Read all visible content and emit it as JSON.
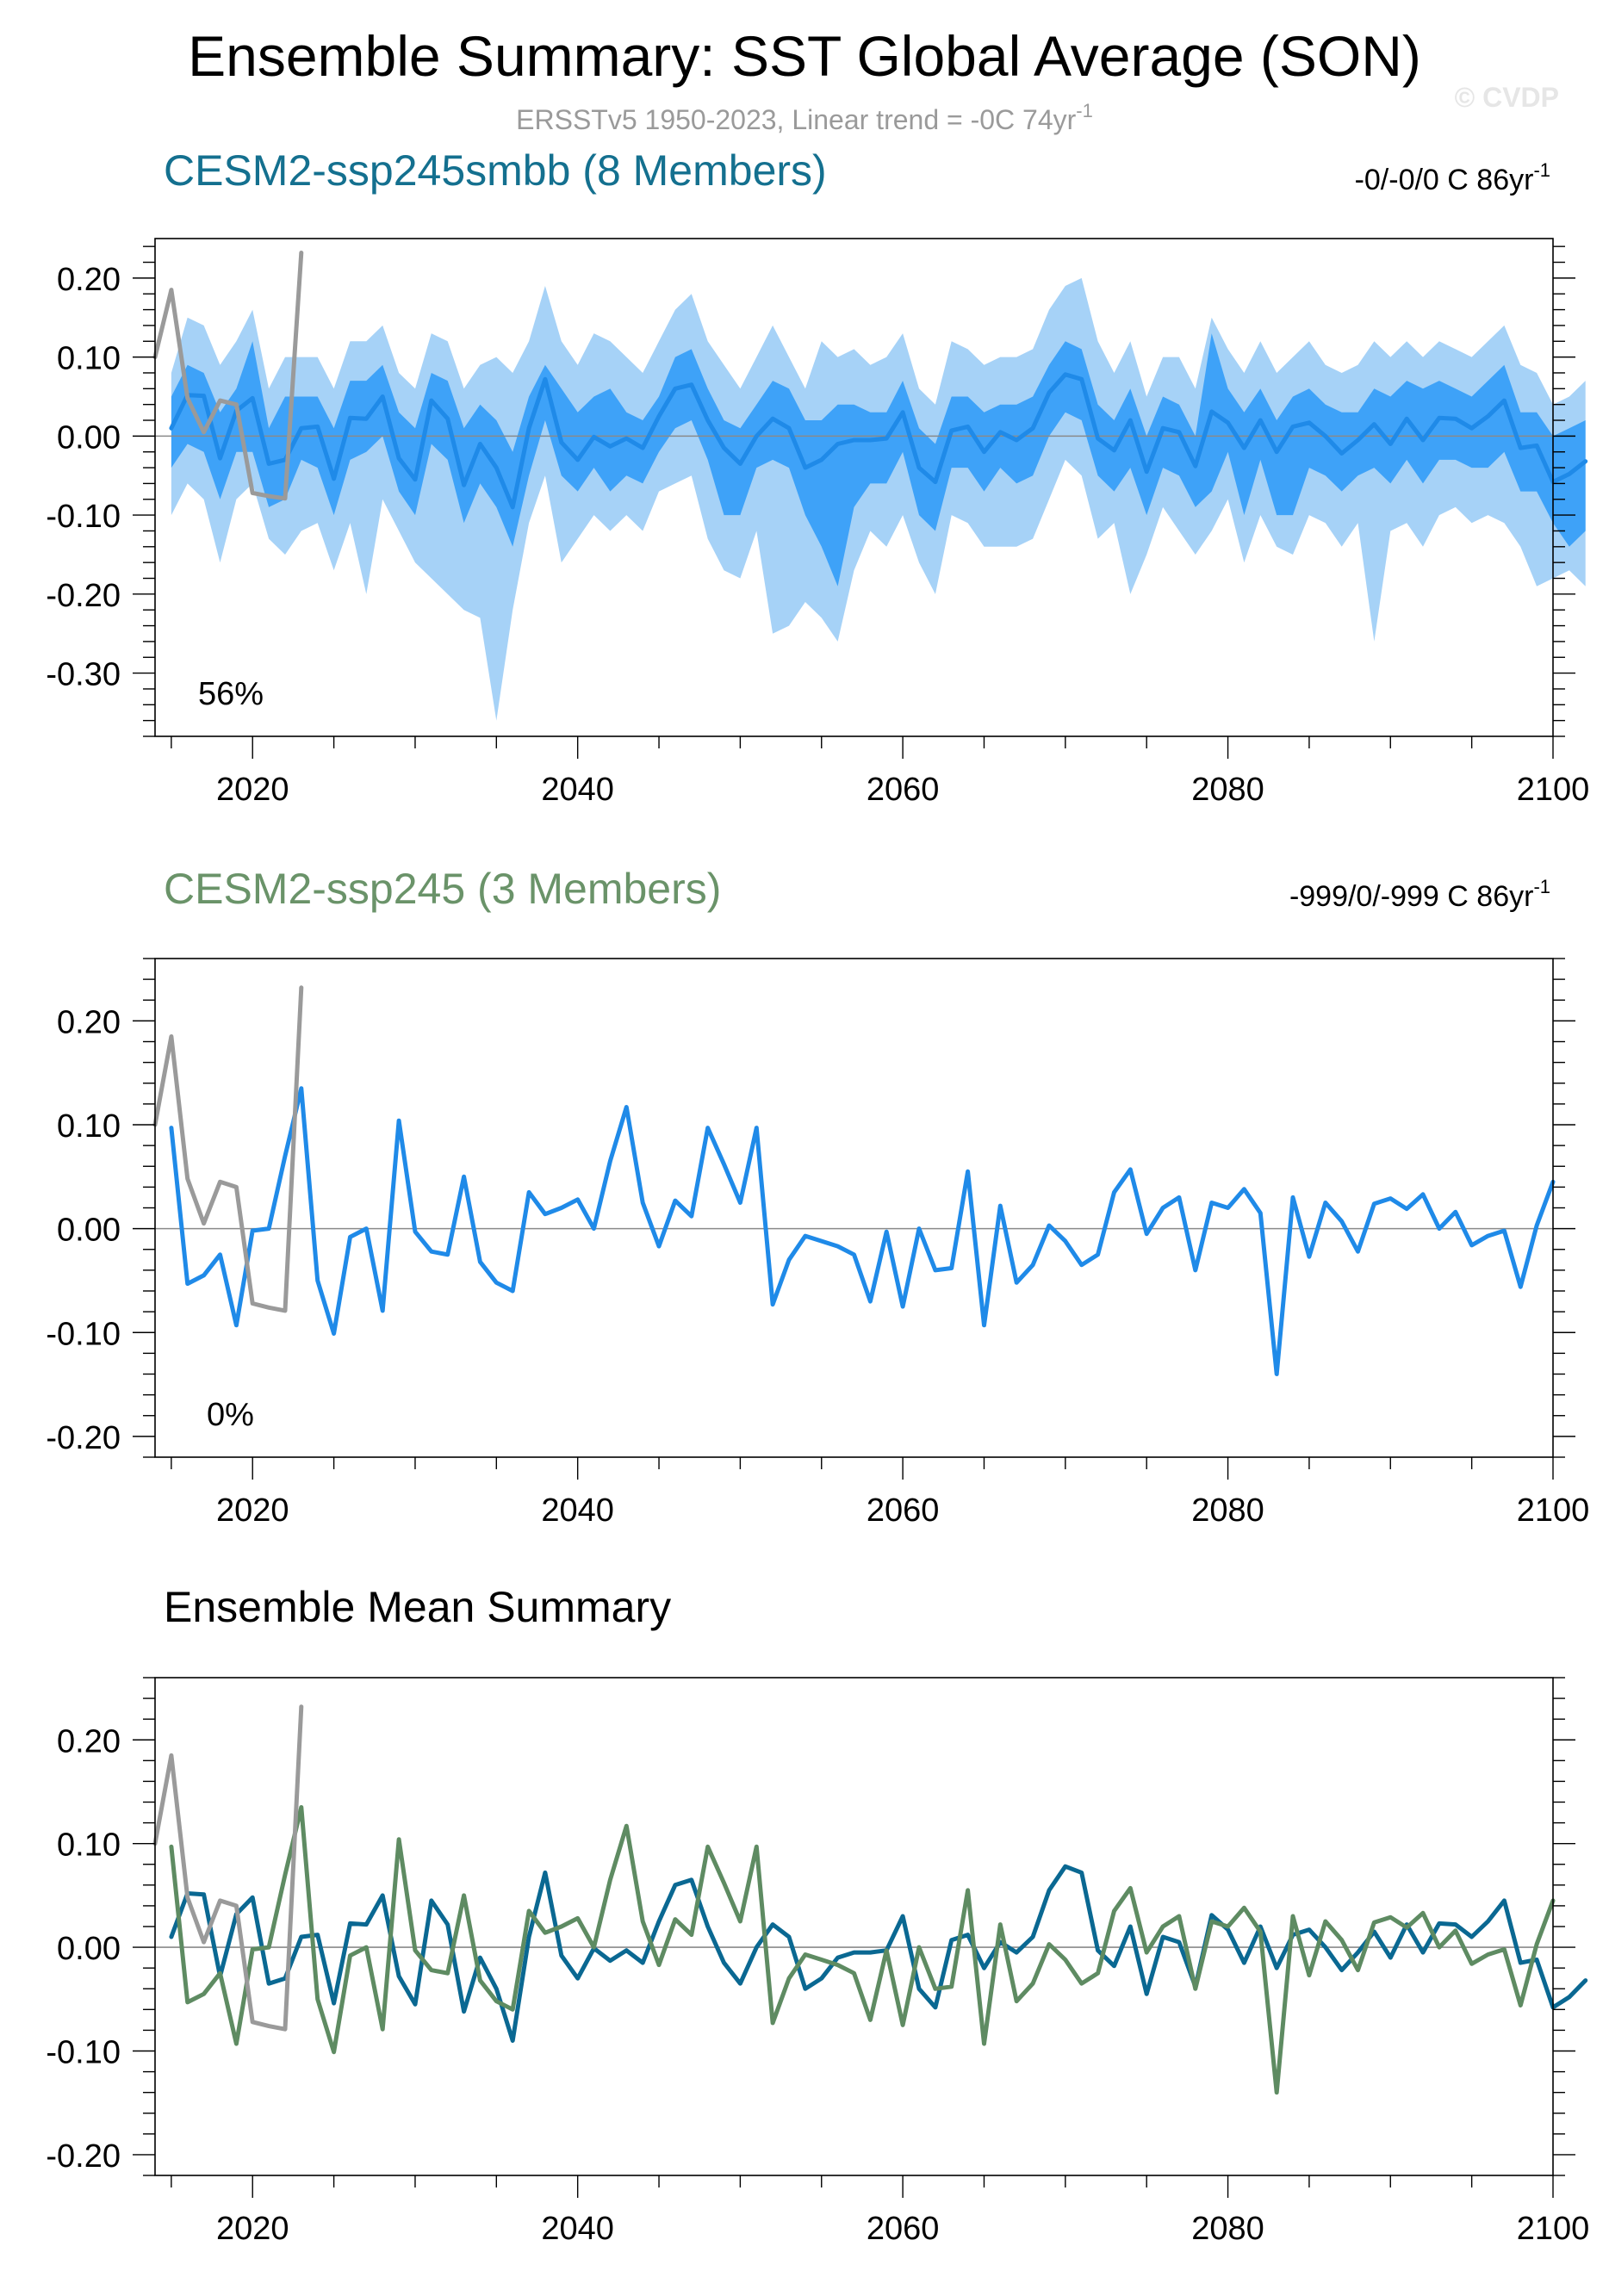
{
  "title": "Ensemble Summary: SST Global Average (SON)",
  "subtitle_main": "ERSSTv5 1950-2023, Linear trend = -0C 74yr",
  "subtitle_sup": "-1",
  "watermark": "© CVDP",
  "colors": {
    "band_outer": "#a6d2f7",
    "band_inner": "#3ea2f8",
    "member_line": "#1f8ae8",
    "mean_smbb": "#0a6892",
    "mean_ssp245": "#5e8b62",
    "obs": "#9a9a9a",
    "smbb_title": "#14708f",
    "ssp245_title": "#6a9369"
  },
  "chart_data": [
    {
      "type": "area",
      "title": "CESM2-ssp245smbb (8 Members)",
      "trend_text": "-0/-0/0 C 86yr",
      "trend_sup": "-1",
      "percent_label": "56%",
      "xlim": [
        2014,
        2100
      ],
      "ylim": [
        -0.38,
        0.25
      ],
      "yticks": [
        0.2,
        0.1,
        0.0,
        -0.1,
        -0.2,
        -0.3
      ],
      "ytick_labels": [
        "0.20",
        "0.10",
        "0.00",
        "-0.10",
        "-0.20",
        "-0.30"
      ],
      "xticks": [
        2020,
        2040,
        2060,
        2080,
        2100
      ],
      "xtick_labels": [
        "2020",
        "2040",
        "2060",
        "2080",
        "2100"
      ],
      "grid": false,
      "zero_line": true,
      "start_year": 2015,
      "series": [
        {
          "role": "obs",
          "x": [
            2014,
            2015,
            2016,
            2017,
            2018,
            2019,
            2020,
            2021,
            2022,
            2023
          ],
          "values": [
            0.1,
            0.185,
            0.048,
            0.005,
            0.045,
            0.04,
            -0.072,
            -0.076,
            -0.079,
            0.232
          ]
        },
        {
          "role": "mean",
          "values": [
            0.01,
            0.052,
            0.051,
            -0.028,
            0.032,
            0.048,
            -0.035,
            -0.03,
            0.01,
            0.012,
            -0.054,
            0.023,
            0.022,
            0.05,
            -0.028,
            -0.055,
            0.045,
            0.022,
            -0.062,
            -0.01,
            -0.04,
            -0.09,
            0.01,
            0.072,
            -0.008,
            -0.03,
            -0.001,
            -0.013,
            -0.003,
            -0.015,
            0.025,
            0.06,
            0.065,
            0.02,
            -0.015,
            -0.035,
            0.0,
            0.022,
            0.01,
            -0.04,
            -0.03,
            -0.01,
            -0.005,
            -0.005,
            -0.003,
            0.03,
            -0.04,
            -0.058,
            0.007,
            0.012,
            -0.02,
            0.005,
            -0.005,
            0.01,
            0.055,
            0.078,
            0.072,
            -0.003,
            -0.018,
            0.02,
            -0.045,
            0.01,
            0.005,
            -0.038,
            0.031,
            0.017,
            -0.015,
            0.02,
            -0.02,
            0.012,
            0.017,
            0.0,
            -0.022,
            -0.005,
            0.015,
            -0.01,
            0.022,
            -0.005,
            0.023,
            0.022,
            0.01,
            0.025,
            0.045,
            -0.015,
            -0.012,
            -0.058,
            -0.048,
            -0.032
          ]
        },
        {
          "role": "inner_upper",
          "values": [
            0.05,
            0.09,
            0.08,
            0.03,
            0.06,
            0.12,
            0.01,
            0.05,
            0.05,
            0.05,
            0.01,
            0.07,
            0.07,
            0.09,
            0.03,
            0.01,
            0.08,
            0.07,
            0.01,
            0.04,
            0.02,
            -0.02,
            0.05,
            0.09,
            0.06,
            0.03,
            0.05,
            0.06,
            0.03,
            0.02,
            0.05,
            0.1,
            0.11,
            0.06,
            0.02,
            0.01,
            0.04,
            0.07,
            0.06,
            0.02,
            0.02,
            0.04,
            0.04,
            0.03,
            0.03,
            0.07,
            0.01,
            -0.01,
            0.05,
            0.05,
            0.03,
            0.04,
            0.04,
            0.05,
            0.09,
            0.12,
            0.11,
            0.04,
            0.02,
            0.06,
            0.0,
            0.05,
            0.04,
            0.0,
            0.13,
            0.06,
            0.03,
            0.06,
            0.02,
            0.05,
            0.06,
            0.04,
            0.03,
            0.03,
            0.06,
            0.05,
            0.07,
            0.06,
            0.07,
            0.06,
            0.05,
            0.07,
            0.09,
            0.03,
            0.03,
            0.0,
            0.01,
            0.02
          ]
        },
        {
          "role": "inner_lower",
          "values": [
            -0.04,
            -0.01,
            -0.02,
            -0.08,
            -0.02,
            -0.02,
            -0.09,
            -0.08,
            -0.03,
            -0.04,
            -0.1,
            -0.03,
            -0.02,
            0.0,
            -0.07,
            -0.1,
            -0.01,
            -0.03,
            -0.11,
            -0.06,
            -0.09,
            -0.14,
            -0.05,
            0.02,
            -0.05,
            -0.07,
            -0.04,
            -0.07,
            -0.05,
            -0.06,
            -0.02,
            0.01,
            0.02,
            -0.03,
            -0.1,
            -0.1,
            -0.04,
            -0.03,
            -0.04,
            -0.1,
            -0.14,
            -0.19,
            -0.09,
            -0.06,
            -0.06,
            -0.02,
            -0.1,
            -0.12,
            -0.04,
            -0.04,
            -0.07,
            -0.04,
            -0.06,
            -0.05,
            0.0,
            0.03,
            0.02,
            -0.05,
            -0.07,
            -0.04,
            -0.1,
            -0.04,
            -0.05,
            -0.09,
            -0.07,
            -0.02,
            -0.1,
            -0.03,
            -0.1,
            -0.1,
            -0.04,
            -0.05,
            -0.07,
            -0.05,
            -0.04,
            -0.06,
            -0.03,
            -0.06,
            -0.03,
            -0.03,
            -0.04,
            -0.04,
            -0.02,
            -0.07,
            -0.07,
            -0.11,
            -0.14,
            -0.12
          ]
        },
        {
          "role": "outer_upper",
          "values": [
            0.08,
            0.15,
            0.14,
            0.09,
            0.12,
            0.16,
            0.06,
            0.1,
            0.1,
            0.1,
            0.06,
            0.12,
            0.12,
            0.14,
            0.08,
            0.06,
            0.13,
            0.12,
            0.06,
            0.09,
            0.1,
            0.08,
            0.12,
            0.19,
            0.12,
            0.09,
            0.13,
            0.12,
            0.1,
            0.08,
            0.12,
            0.16,
            0.18,
            0.12,
            0.09,
            0.06,
            0.1,
            0.14,
            0.1,
            0.06,
            0.12,
            0.1,
            0.11,
            0.09,
            0.1,
            0.13,
            0.06,
            0.04,
            0.12,
            0.11,
            0.09,
            0.1,
            0.1,
            0.11,
            0.16,
            0.19,
            0.2,
            0.12,
            0.08,
            0.12,
            0.05,
            0.1,
            0.1,
            0.06,
            0.15,
            0.11,
            0.08,
            0.12,
            0.08,
            0.1,
            0.12,
            0.09,
            0.08,
            0.09,
            0.12,
            0.1,
            0.12,
            0.1,
            0.12,
            0.11,
            0.1,
            0.12,
            0.14,
            0.09,
            0.08,
            0.04,
            0.05,
            0.07
          ]
        },
        {
          "role": "outer_lower",
          "values": [
            -0.1,
            -0.06,
            -0.08,
            -0.16,
            -0.08,
            -0.06,
            -0.13,
            -0.15,
            -0.12,
            -0.11,
            -0.17,
            -0.11,
            -0.2,
            -0.08,
            -0.12,
            -0.16,
            -0.18,
            -0.2,
            -0.22,
            -0.23,
            -0.36,
            -0.22,
            -0.11,
            -0.05,
            -0.16,
            -0.13,
            -0.1,
            -0.12,
            -0.1,
            -0.12,
            -0.07,
            -0.06,
            -0.05,
            -0.13,
            -0.17,
            -0.18,
            -0.12,
            -0.25,
            -0.24,
            -0.21,
            -0.23,
            -0.26,
            -0.17,
            -0.12,
            -0.14,
            -0.1,
            -0.16,
            -0.2,
            -0.1,
            -0.11,
            -0.14,
            -0.14,
            -0.14,
            -0.13,
            -0.08,
            -0.03,
            -0.05,
            -0.13,
            -0.11,
            -0.2,
            -0.15,
            -0.09,
            -0.12,
            -0.15,
            -0.12,
            -0.08,
            -0.16,
            -0.1,
            -0.14,
            -0.15,
            -0.1,
            -0.11,
            -0.14,
            -0.11,
            -0.26,
            -0.12,
            -0.11,
            -0.14,
            -0.1,
            -0.09,
            -0.11,
            -0.1,
            -0.11,
            -0.14,
            -0.19,
            -0.18,
            -0.17,
            -0.19
          ]
        }
      ]
    },
    {
      "type": "line",
      "title": "CESM2-ssp245 (3 Members)",
      "trend_text": "-999/0/-999 C 86yr",
      "trend_sup": "-1",
      "percent_label": "0%",
      "xlim": [
        2014,
        2100
      ],
      "ylim": [
        -0.22,
        0.26
      ],
      "yticks": [
        0.2,
        0.1,
        0.0,
        -0.1,
        -0.2
      ],
      "ytick_labels": [
        "0.20",
        "0.10",
        "0.00",
        "-0.10",
        "-0.20"
      ],
      "xticks": [
        2020,
        2040,
        2060,
        2080,
        2100
      ],
      "xtick_labels": [
        "2020",
        "2040",
        "2060",
        "2080",
        "2100"
      ],
      "grid": false,
      "zero_line": true,
      "start_year": 2015,
      "series": [
        {
          "role": "obs",
          "x": [
            2014,
            2015,
            2016,
            2017,
            2018,
            2019,
            2020,
            2021,
            2022,
            2023
          ],
          "values": [
            0.1,
            0.185,
            0.048,
            0.005,
            0.045,
            0.04,
            -0.072,
            -0.076,
            -0.079,
            0.232
          ]
        },
        {
          "role": "member",
          "values": [
            0.097,
            -0.053,
            -0.045,
            -0.025,
            -0.093,
            -0.002,
            0.0,
            0.07,
            0.135,
            -0.05,
            -0.101,
            -0.008,
            0.0,
            -0.079,
            0.104,
            -0.003,
            -0.022,
            -0.025,
            0.05,
            -0.032,
            -0.052,
            -0.06,
            0.035,
            0.014,
            0.02,
            0.028,
            0.0,
            0.065,
            0.117,
            0.025,
            -0.017,
            0.027,
            0.012,
            0.097,
            0.062,
            0.025,
            0.097,
            -0.073,
            -0.03,
            -0.007,
            -0.012,
            -0.017,
            -0.025,
            -0.07,
            -0.003,
            -0.075,
            0.0,
            -0.04,
            -0.038,
            0.055,
            -0.093,
            0.022,
            -0.052,
            -0.035,
            0.003,
            -0.012,
            -0.035,
            -0.025,
            0.035,
            0.057,
            -0.005,
            0.02,
            0.03,
            -0.04,
            0.025,
            0.02,
            0.038,
            0.015,
            -0.14,
            0.03,
            -0.027,
            0.025,
            0.007,
            -0.022,
            0.024,
            0.029,
            0.019,
            0.033,
            0.0,
            0.016,
            -0.016,
            -0.007,
            -0.002,
            -0.056,
            0.003,
            0.045
          ]
        }
      ]
    },
    {
      "type": "line",
      "title": "Ensemble Mean Summary",
      "xlim": [
        2014,
        2100
      ],
      "ylim": [
        -0.22,
        0.26
      ],
      "yticks": [
        0.2,
        0.1,
        0.0,
        -0.1,
        -0.2
      ],
      "ytick_labels": [
        "0.20",
        "0.10",
        "0.00",
        "-0.10",
        "-0.20"
      ],
      "xticks": [
        2020,
        2040,
        2060,
        2080,
        2100
      ],
      "xtick_labels": [
        "2020",
        "2040",
        "2060",
        "2080",
        "2100"
      ],
      "grid": false,
      "zero_line": true,
      "start_year": 2015,
      "series": [
        {
          "role": "obs",
          "x": [
            2014,
            2015,
            2016,
            2017,
            2018,
            2019,
            2020,
            2021,
            2022,
            2023
          ],
          "values": [
            0.1,
            0.185,
            0.048,
            0.005,
            0.045,
            0.04,
            -0.072,
            -0.076,
            -0.079,
            0.232
          ]
        },
        {
          "role": "mean_smbb",
          "values": [
            0.01,
            0.052,
            0.051,
            -0.028,
            0.032,
            0.048,
            -0.035,
            -0.03,
            0.01,
            0.012,
            -0.054,
            0.023,
            0.022,
            0.05,
            -0.028,
            -0.055,
            0.045,
            0.022,
            -0.062,
            -0.01,
            -0.04,
            -0.09,
            0.01,
            0.072,
            -0.008,
            -0.03,
            -0.001,
            -0.013,
            -0.003,
            -0.015,
            0.025,
            0.06,
            0.065,
            0.02,
            -0.015,
            -0.035,
            0.0,
            0.022,
            0.01,
            -0.04,
            -0.03,
            -0.01,
            -0.005,
            -0.005,
            -0.003,
            0.03,
            -0.04,
            -0.058,
            0.007,
            0.012,
            -0.02,
            0.005,
            -0.005,
            0.01,
            0.055,
            0.078,
            0.072,
            -0.003,
            -0.018,
            0.02,
            -0.045,
            0.01,
            0.005,
            -0.038,
            0.031,
            0.017,
            -0.015,
            0.02,
            -0.02,
            0.012,
            0.017,
            0.0,
            -0.022,
            -0.005,
            0.015,
            -0.01,
            0.022,
            -0.005,
            0.023,
            0.022,
            0.01,
            0.025,
            0.045,
            -0.015,
            -0.012,
            -0.058,
            -0.048,
            -0.032
          ]
        },
        {
          "role": "mean_ssp245",
          "values": [
            0.097,
            -0.053,
            -0.045,
            -0.025,
            -0.093,
            -0.002,
            0.0,
            0.07,
            0.135,
            -0.05,
            -0.101,
            -0.008,
            0.0,
            -0.079,
            0.104,
            -0.003,
            -0.022,
            -0.025,
            0.05,
            -0.032,
            -0.052,
            -0.06,
            0.035,
            0.014,
            0.02,
            0.028,
            0.0,
            0.065,
            0.117,
            0.025,
            -0.017,
            0.027,
            0.012,
            0.097,
            0.062,
            0.025,
            0.097,
            -0.073,
            -0.03,
            -0.007,
            -0.012,
            -0.017,
            -0.025,
            -0.07,
            -0.003,
            -0.075,
            0.0,
            -0.04,
            -0.038,
            0.055,
            -0.093,
            0.022,
            -0.052,
            -0.035,
            0.003,
            -0.012,
            -0.035,
            -0.025,
            0.035,
            0.057,
            -0.005,
            0.02,
            0.03,
            -0.04,
            0.025,
            0.02,
            0.038,
            0.015,
            -0.14,
            0.03,
            -0.027,
            0.025,
            0.007,
            -0.022,
            0.024,
            0.029,
            0.019,
            0.033,
            0.0,
            0.016,
            -0.016,
            -0.007,
            -0.002,
            -0.056,
            0.003,
            0.045
          ]
        }
      ]
    }
  ]
}
